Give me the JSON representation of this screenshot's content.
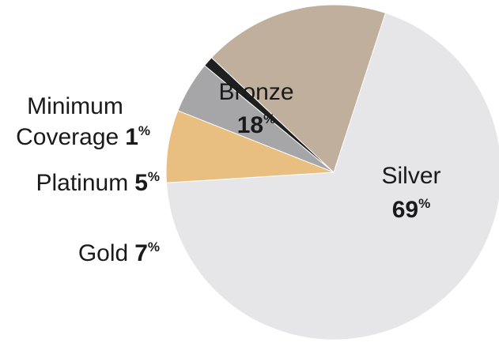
{
  "chart_data": {
    "type": "pie",
    "unit": "%",
    "slices": [
      {
        "label": "Silver",
        "value": 69,
        "color": "#e6e6e8"
      },
      {
        "label": "Gold",
        "value": 7,
        "color": "#e8bf80"
      },
      {
        "label": "Platinum",
        "value": 5,
        "color": "#a6a6a8"
      },
      {
        "label": "Minimum Coverage",
        "value": 1,
        "color": "#1f1f1f"
      },
      {
        "label": "Bronze",
        "value": 18,
        "color": "#bfaf9c"
      }
    ]
  }
}
